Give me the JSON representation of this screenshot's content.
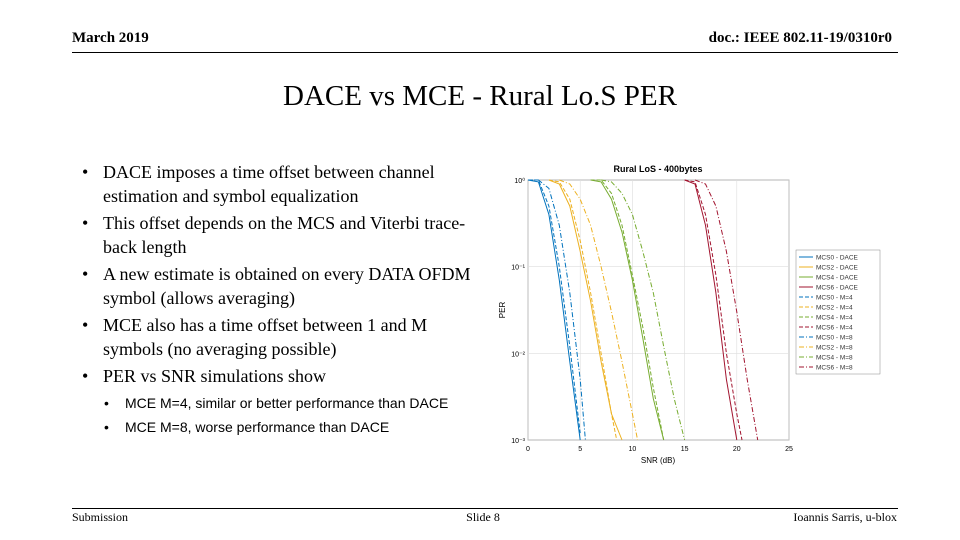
{
  "header": {
    "date": "March 2019",
    "doc": "doc.: IEEE 802.11-19/0310r0"
  },
  "title": "DACE vs MCE - Rural Lo.S PER",
  "bullets": [
    "DACE imposes a time offset between channel estimation and symbol equalization",
    "This offset depends on the MCS and Viterbi trace-back length",
    "A new estimate is obtained on every DATA OFDM symbol (allows averaging)",
    "MCE also has a time offset between 1 and M symbols (no averaging possible)",
    "PER vs SNR simulations show"
  ],
  "sub_bullets": [
    "MCE M=4, similar or better performance than DACE",
    "MCE M=8, worse performance than DACE"
  ],
  "figure": {
    "type": "line",
    "title": "Rural LoS - 400bytes",
    "x_label": "SNR (dB)",
    "y_label": "PER",
    "xlim": [
      0,
      25
    ],
    "xticks": [
      0,
      5,
      10,
      15,
      20,
      25
    ],
    "ylim": [
      0.001,
      1
    ],
    "log_y": true,
    "grid": true,
    "yticks": [
      {
        "value": 1,
        "label": "10⁰"
      },
      {
        "value": 0.1,
        "label": "10⁻¹"
      },
      {
        "value": 0.01,
        "label": "10⁻²"
      },
      {
        "value": 0.001,
        "label": "10⁻³"
      }
    ],
    "series": [
      {
        "name": "MCS0 - DACE",
        "color": "#0072bd",
        "dash": "solid",
        "x": [
          0,
          1,
          2,
          3,
          4,
          5
        ],
        "values": [
          1,
          0.95,
          0.4,
          0.07,
          0.008,
          0.001
        ]
      },
      {
        "name": "MCS2 - DACE",
        "color": "#edb120",
        "dash": "solid",
        "x": [
          2,
          3,
          4,
          5,
          6,
          7,
          8,
          9
        ],
        "values": [
          1,
          0.9,
          0.5,
          0.15,
          0.04,
          0.008,
          0.002,
          0.001
        ]
      },
      {
        "name": "MCS4 - DACE",
        "color": "#77ac30",
        "dash": "solid",
        "x": [
          6,
          7,
          8,
          9,
          10,
          11,
          12,
          13
        ],
        "values": [
          1,
          0.95,
          0.6,
          0.25,
          0.07,
          0.015,
          0.003,
          0.001
        ]
      },
      {
        "name": "MCS6 - DACE",
        "color": "#a2142f",
        "dash": "solid",
        "x": [
          15,
          16,
          17,
          18,
          19,
          20
        ],
        "values": [
          1,
          0.9,
          0.3,
          0.05,
          0.005,
          0.001
        ]
      },
      {
        "name": "MCS0 - M=4",
        "color": "#0072bd",
        "dash": "dashed",
        "x": [
          0,
          1,
          2,
          3,
          4,
          5
        ],
        "values": [
          1,
          1,
          0.5,
          0.1,
          0.012,
          0.0012
        ]
      },
      {
        "name": "MCS2 - M=4",
        "color": "#edb120",
        "dash": "dashed",
        "x": [
          2,
          3,
          4,
          5,
          6,
          7,
          8,
          8.5
        ],
        "values": [
          1,
          0.95,
          0.6,
          0.2,
          0.05,
          0.01,
          0.002,
          0.001
        ]
      },
      {
        "name": "MCS4 - M=4",
        "color": "#77ac30",
        "dash": "dashed",
        "x": [
          6,
          7,
          8,
          9,
          10,
          11,
          12,
          13
        ],
        "values": [
          1,
          1,
          0.7,
          0.3,
          0.08,
          0.02,
          0.004,
          0.001
        ]
      },
      {
        "name": "MCS6 - M=4",
        "color": "#a2142f",
        "dash": "dashed",
        "x": [
          15,
          16,
          17,
          18,
          19,
          20,
          20.5
        ],
        "values": [
          1,
          0.95,
          0.4,
          0.08,
          0.01,
          0.002,
          0.001
        ]
      },
      {
        "name": "MCS0 - M=8",
        "color": "#0072bd",
        "dash": "dashdot",
        "x": [
          0,
          1,
          2,
          3,
          4,
          5,
          5.5
        ],
        "values": [
          1,
          1,
          0.8,
          0.3,
          0.05,
          0.005,
          0.001
        ]
      },
      {
        "name": "MCS2 - M=8",
        "color": "#edb120",
        "dash": "dashdot",
        "x": [
          3,
          4,
          5,
          6,
          7,
          8,
          9,
          10,
          10.5
        ],
        "values": [
          1,
          0.9,
          0.6,
          0.3,
          0.1,
          0.03,
          0.008,
          0.002,
          0.001
        ]
      },
      {
        "name": "MCS4 - M=8",
        "color": "#77ac30",
        "dash": "dashdot",
        "x": [
          7,
          8,
          9,
          10,
          11,
          12,
          13,
          14,
          15
        ],
        "values": [
          1,
          0.95,
          0.7,
          0.4,
          0.15,
          0.05,
          0.012,
          0.003,
          0.001
        ]
      },
      {
        "name": "MCS6 - M=8",
        "color": "#a2142f",
        "dash": "dashdot",
        "x": [
          16,
          17,
          18,
          19,
          20,
          21,
          22
        ],
        "values": [
          1,
          0.9,
          0.5,
          0.15,
          0.03,
          0.005,
          0.001
        ]
      }
    ]
  },
  "footer": {
    "left": "Submission",
    "center": "Slide 8",
    "right": "Ioannis Sarris, u-blox"
  }
}
